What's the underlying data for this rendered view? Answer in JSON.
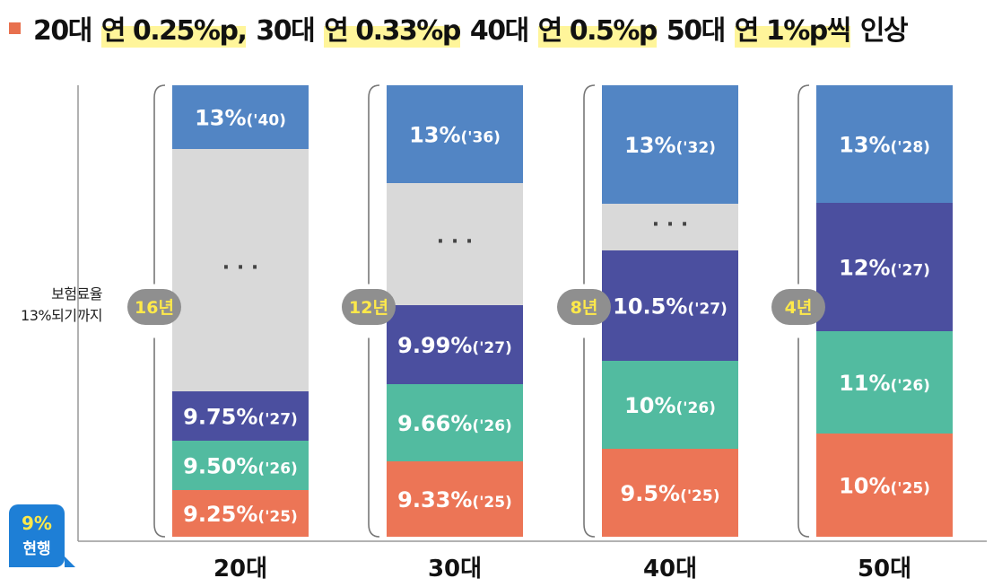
{
  "title": {
    "segments": [
      {
        "text": "20대",
        "hl": false
      },
      {
        "text": "연 0.25%p,",
        "hl": true
      },
      {
        "text": "30대",
        "hl": false
      },
      {
        "text": "연 0.33%p",
        "hl": true
      },
      {
        "text": "40대",
        "hl": false
      },
      {
        "text": "연 0.5%p",
        "hl": true
      },
      {
        "text": "50대",
        "hl": false
      },
      {
        "text": "연 1%p씩",
        "hl": true
      },
      {
        "text": "인상",
        "hl": false
      }
    ]
  },
  "y_label": {
    "line1": "보험료율",
    "line2": "13%되기까지"
  },
  "current": {
    "value": "9%",
    "label": "현행"
  },
  "colors": {
    "orange": "#ec7556",
    "teal": "#52bba0",
    "indigo": "#4b4f9f",
    "gray": "#d9d9d9",
    "blue": "#5285c4",
    "badge": "#8f8f8f",
    "badge_text": "#ffe94a"
  },
  "chart_data": {
    "type": "bar",
    "stacked": true,
    "categories": [
      "20대",
      "30대",
      "40대",
      "50대"
    ],
    "bars": [
      {
        "category": "20대",
        "years_badge": "16년",
        "segments": [
          {
            "value_label": "9.25%",
            "year": "('25)",
            "color": "orange"
          },
          {
            "value_label": "9.50%",
            "year": "('26)",
            "color": "teal"
          },
          {
            "value_label": "9.75%",
            "year": "('27)",
            "color": "indigo"
          },
          {
            "value_label": "· · ·",
            "year": "",
            "color": "gray",
            "gap": true
          },
          {
            "value_label": "13%",
            "year": "('40)",
            "color": "blue"
          }
        ]
      },
      {
        "category": "30대",
        "years_badge": "12년",
        "segments": [
          {
            "value_label": "9.33%",
            "year": "('25)",
            "color": "orange"
          },
          {
            "value_label": "9.66%",
            "year": "('26)",
            "color": "teal"
          },
          {
            "value_label": "9.99%",
            "year": "('27)",
            "color": "indigo"
          },
          {
            "value_label": "· · ·",
            "year": "",
            "color": "gray",
            "gap": true
          },
          {
            "value_label": "13%",
            "year": "('36)",
            "color": "blue"
          }
        ]
      },
      {
        "category": "40대",
        "years_badge": "8년",
        "segments": [
          {
            "value_label": "9.5%",
            "year": "('25)",
            "color": "orange"
          },
          {
            "value_label": "10%",
            "year": "('26)",
            "color": "teal"
          },
          {
            "value_label": "10.5%",
            "year": "('27)",
            "color": "indigo"
          },
          {
            "value_label": "· · ·",
            "year": "",
            "color": "gray",
            "gap": true
          },
          {
            "value_label": "13%",
            "year": "('32)",
            "color": "blue"
          }
        ]
      },
      {
        "category": "50대",
        "years_badge": "4년",
        "segments": [
          {
            "value_label": "10%",
            "year": "('25)",
            "color": "orange"
          },
          {
            "value_label": "11%",
            "year": "('26)",
            "color": "teal"
          },
          {
            "value_label": "12%",
            "year": "('27)",
            "color": "indigo"
          },
          {
            "value_label": "13%",
            "year": "('28)",
            "color": "blue"
          }
        ]
      }
    ]
  }
}
